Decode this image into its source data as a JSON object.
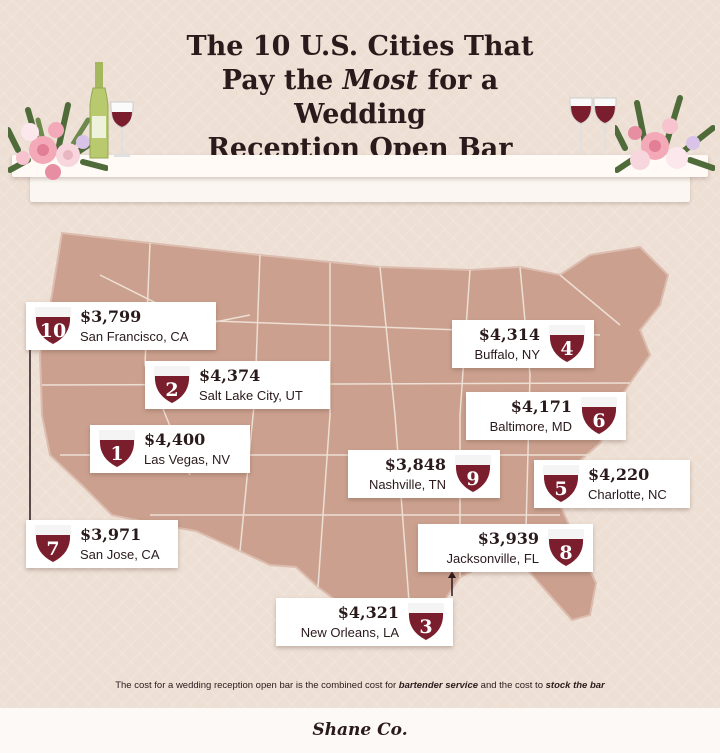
{
  "title": {
    "line1": "The 10 U.S. Cities That",
    "line2_pre": "Pay the ",
    "line2_em": "Most",
    "line2_post": " for a Wedding",
    "line3": "Reception Open Bar"
  },
  "cities": [
    {
      "rank": "10",
      "price": "$3,799",
      "city": "San Francisco, CA"
    },
    {
      "rank": "2",
      "price": "$4,374",
      "city": "Salt Lake City, UT"
    },
    {
      "rank": "1",
      "price": "$4,400",
      "city": "Las Vegas, NV"
    },
    {
      "rank": "7",
      "price": "$3,971",
      "city": "San Jose, CA"
    },
    {
      "rank": "4",
      "price": "$4,314",
      "city": "Buffalo, NY"
    },
    {
      "rank": "6",
      "price": "$4,171",
      "city": "Baltimore, MD"
    },
    {
      "rank": "9",
      "price": "$3,848",
      "city": "Nashville, TN"
    },
    {
      "rank": "5",
      "price": "$4,220",
      "city": "Charlotte, NC"
    },
    {
      "rank": "8",
      "price": "$3,939",
      "city": "Jacksonville, FL"
    },
    {
      "rank": "3",
      "price": "$4,321",
      "city": "New Orleans, LA"
    }
  ],
  "footnote": {
    "pre": "The cost for a wedding reception open bar is the combined cost for ",
    "em1": "bartender service",
    "mid": " and the cost to ",
    "em2": "stock the bar"
  },
  "brand": "Shane Co.",
  "colors": {
    "background": "#eddfd4",
    "map_fill": "#cba08e",
    "map_border": "#eddfd4",
    "wine": "#7a1e2e",
    "callout": "#ffffff"
  },
  "icons": [
    "wine-bottle-icon",
    "wine-glass-icon",
    "flower-bouquet-icon"
  ]
}
